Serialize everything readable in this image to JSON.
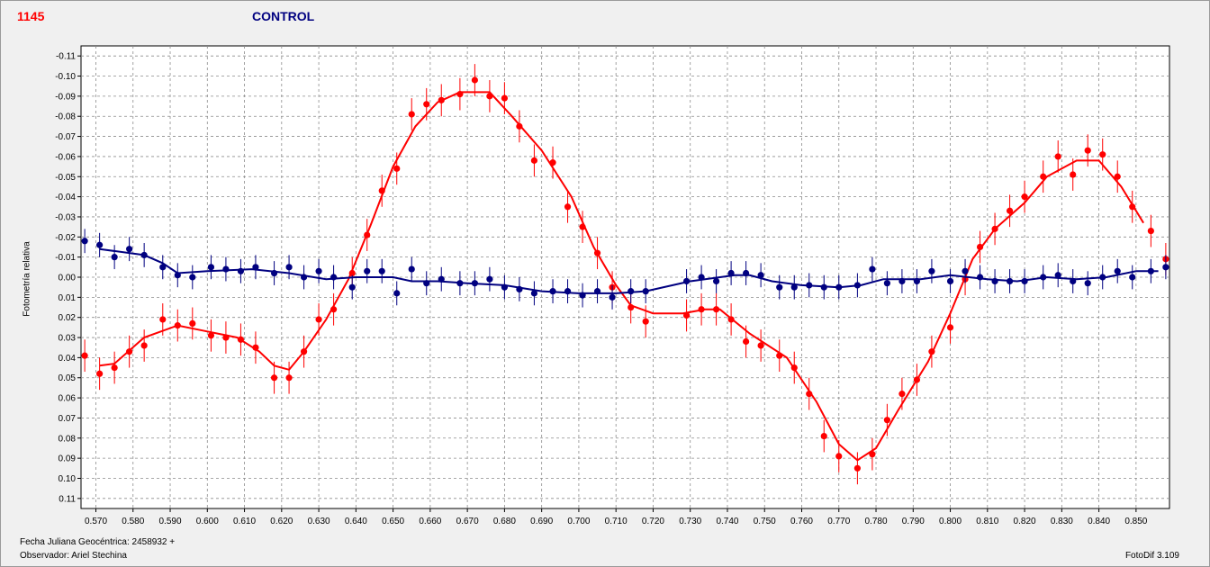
{
  "header": {
    "star_label": "1145",
    "control_label": "CONTROL"
  },
  "footer": {
    "julian_date": "Fecha Juliana Geocéntrica: 2458932 +",
    "observer": "Observador: Ariel Stechina",
    "software": "FotoDif 3.109"
  },
  "chart_data": {
    "type": "scatter",
    "ylabel": "Fotometría relativa",
    "xlim": [
      0.566,
      0.859
    ],
    "ylim": [
      -0.115,
      0.115
    ],
    "y_inverted": true,
    "grid": true,
    "x_ticks": [
      "0.570",
      "0.580",
      "0.590",
      "0.600",
      "0.610",
      "0.620",
      "0.630",
      "0.640",
      "0.650",
      "0.660",
      "0.670",
      "0.680",
      "0.690",
      "0.700",
      "0.710",
      "0.720",
      "0.730",
      "0.740",
      "0.750",
      "0.760",
      "0.770",
      "0.780",
      "0.790",
      "0.800",
      "0.810",
      "0.820",
      "0.830",
      "0.840",
      "0.850"
    ],
    "y_ticks": [
      "-0.11",
      "-0.10",
      "-0.09",
      "-0.08",
      "-0.07",
      "-0.06",
      "-0.05",
      "-0.04",
      "-0.03",
      "-0.02",
      "-0.01",
      "0.00",
      "0.01",
      "0.02",
      "0.03",
      "0.04",
      "0.05",
      "0.06",
      "0.07",
      "0.08",
      "0.09",
      "0.10",
      "0.11"
    ],
    "colors": {
      "variable": "#ff0000",
      "control": "#000080",
      "grid": "#8c8c8c"
    },
    "series": [
      {
        "color": "#ff0000",
        "err": 0.008,
        "points": [
          [
            0.567,
            0.039
          ],
          [
            0.571,
            0.048
          ],
          [
            0.575,
            0.045
          ],
          [
            0.579,
            0.037
          ],
          [
            0.583,
            0.034
          ],
          [
            0.588,
            0.021
          ],
          [
            0.592,
            0.024
          ],
          [
            0.596,
            0.023
          ],
          [
            0.601,
            0.029
          ],
          [
            0.605,
            0.03
          ],
          [
            0.609,
            0.031
          ],
          [
            0.613,
            0.035
          ],
          [
            0.618,
            0.05
          ],
          [
            0.622,
            0.05
          ],
          [
            0.626,
            0.037
          ],
          [
            0.63,
            0.021
          ],
          [
            0.634,
            0.016
          ],
          [
            0.639,
            -0.002
          ],
          [
            0.643,
            -0.021
          ],
          [
            0.647,
            -0.043
          ],
          [
            0.651,
            -0.054
          ],
          [
            0.655,
            -0.081
          ],
          [
            0.659,
            -0.086
          ],
          [
            0.663,
            -0.088
          ],
          [
            0.668,
            -0.091
          ],
          [
            0.672,
            -0.098
          ],
          [
            0.676,
            -0.09
          ],
          [
            0.68,
            -0.089
          ],
          [
            0.684,
            -0.075
          ],
          [
            0.688,
            -0.058
          ],
          [
            0.693,
            -0.057
          ],
          [
            0.697,
            -0.035
          ],
          [
            0.701,
            -0.025
          ],
          [
            0.705,
            -0.012
          ],
          [
            0.709,
            0.005
          ],
          [
            0.714,
            0.015
          ],
          [
            0.718,
            0.022
          ],
          [
            0.729,
            0.019
          ],
          [
            0.733,
            0.016
          ],
          [
            0.737,
            0.016
          ],
          [
            0.741,
            0.021
          ],
          [
            0.745,
            0.032
          ],
          [
            0.749,
            0.034
          ],
          [
            0.754,
            0.039
          ],
          [
            0.758,
            0.045
          ],
          [
            0.762,
            0.058
          ],
          [
            0.766,
            0.079
          ],
          [
            0.77,
            0.089
          ],
          [
            0.775,
            0.095
          ],
          [
            0.779,
            0.088
          ],
          [
            0.783,
            0.071
          ],
          [
            0.787,
            0.058
          ],
          [
            0.791,
            0.051
          ],
          [
            0.795,
            0.037
          ],
          [
            0.8,
            0.025
          ],
          [
            0.804,
            0.001
          ],
          [
            0.808,
            -0.015
          ],
          [
            0.812,
            -0.024
          ],
          [
            0.816,
            -0.033
          ],
          [
            0.82,
            -0.04
          ],
          [
            0.825,
            -0.05
          ],
          [
            0.829,
            -0.06
          ],
          [
            0.833,
            -0.051
          ],
          [
            0.837,
            -0.063
          ],
          [
            0.841,
            -0.061
          ],
          [
            0.845,
            -0.05
          ],
          [
            0.849,
            -0.035
          ],
          [
            0.854,
            -0.023
          ],
          [
            0.858,
            -0.009
          ]
        ],
        "fit": [
          [
            0.571,
            0.044
          ],
          [
            0.575,
            0.043
          ],
          [
            0.583,
            0.03
          ],
          [
            0.592,
            0.024
          ],
          [
            0.6,
            0.027
          ],
          [
            0.608,
            0.03
          ],
          [
            0.614,
            0.037
          ],
          [
            0.618,
            0.044
          ],
          [
            0.622,
            0.046
          ],
          [
            0.626,
            0.037
          ],
          [
            0.632,
            0.021
          ],
          [
            0.638,
            0.001
          ],
          [
            0.644,
            -0.026
          ],
          [
            0.65,
            -0.055
          ],
          [
            0.656,
            -0.075
          ],
          [
            0.662,
            -0.087
          ],
          [
            0.668,
            -0.092
          ],
          [
            0.676,
            -0.092
          ],
          [
            0.682,
            -0.08
          ],
          [
            0.69,
            -0.063
          ],
          [
            0.698,
            -0.04
          ],
          [
            0.704,
            -0.015
          ],
          [
            0.71,
            0.004
          ],
          [
            0.714,
            0.014
          ],
          [
            0.72,
            0.018
          ],
          [
            0.728,
            0.018
          ],
          [
            0.734,
            0.016
          ],
          [
            0.738,
            0.016
          ],
          [
            0.746,
            0.028
          ],
          [
            0.756,
            0.04
          ],
          [
            0.764,
            0.062
          ],
          [
            0.77,
            0.083
          ],
          [
            0.775,
            0.091
          ],
          [
            0.78,
            0.085
          ],
          [
            0.786,
            0.066
          ],
          [
            0.794,
            0.042
          ],
          [
            0.8,
            0.018
          ],
          [
            0.806,
            -0.009
          ],
          [
            0.812,
            -0.024
          ],
          [
            0.82,
            -0.037
          ],
          [
            0.826,
            -0.05
          ],
          [
            0.834,
            -0.058
          ],
          [
            0.84,
            -0.058
          ],
          [
            0.846,
            -0.045
          ],
          [
            0.852,
            -0.027
          ]
        ]
      },
      {
        "color": "#000080",
        "err": 0.006,
        "points": [
          [
            0.567,
            -0.018
          ],
          [
            0.571,
            -0.016
          ],
          [
            0.575,
            -0.01
          ],
          [
            0.579,
            -0.014
          ],
          [
            0.583,
            -0.011
          ],
          [
            0.588,
            -0.005
          ],
          [
            0.592,
            -0.001
          ],
          [
            0.596,
            0.0
          ],
          [
            0.601,
            -0.005
          ],
          [
            0.605,
            -0.004
          ],
          [
            0.609,
            -0.003
          ],
          [
            0.613,
            -0.005
          ],
          [
            0.618,
            -0.002
          ],
          [
            0.622,
            -0.005
          ],
          [
            0.626,
            0.0
          ],
          [
            0.63,
            -0.003
          ],
          [
            0.634,
            0.0
          ],
          [
            0.639,
            0.005
          ],
          [
            0.643,
            -0.003
          ],
          [
            0.647,
            -0.003
          ],
          [
            0.651,
            0.008
          ],
          [
            0.655,
            -0.004
          ],
          [
            0.659,
            0.003
          ],
          [
            0.663,
            0.001
          ],
          [
            0.668,
            0.003
          ],
          [
            0.672,
            0.003
          ],
          [
            0.676,
            0.001
          ],
          [
            0.68,
            0.005
          ],
          [
            0.684,
            0.006
          ],
          [
            0.688,
            0.008
          ],
          [
            0.693,
            0.007
          ],
          [
            0.697,
            0.007
          ],
          [
            0.701,
            0.009
          ],
          [
            0.705,
            0.007
          ],
          [
            0.709,
            0.01
          ],
          [
            0.714,
            0.007
          ],
          [
            0.718,
            0.007
          ],
          [
            0.729,
            0.002
          ],
          [
            0.733,
            0.0
          ],
          [
            0.737,
            0.002
          ],
          [
            0.741,
            -0.002
          ],
          [
            0.745,
            -0.002
          ],
          [
            0.749,
            -0.001
          ],
          [
            0.754,
            0.005
          ],
          [
            0.758,
            0.005
          ],
          [
            0.762,
            0.004
          ],
          [
            0.766,
            0.005
          ],
          [
            0.77,
            0.005
          ],
          [
            0.775,
            0.004
          ],
          [
            0.779,
            -0.004
          ],
          [
            0.783,
            0.003
          ],
          [
            0.787,
            0.002
          ],
          [
            0.791,
            0.002
          ],
          [
            0.795,
            -0.003
          ],
          [
            0.8,
            0.002
          ],
          [
            0.804,
            -0.003
          ],
          [
            0.808,
            0.0
          ],
          [
            0.812,
            0.002
          ],
          [
            0.816,
            0.002
          ],
          [
            0.82,
            0.002
          ],
          [
            0.825,
            0.0
          ],
          [
            0.829,
            -0.001
          ],
          [
            0.833,
            0.002
          ],
          [
            0.837,
            0.003
          ],
          [
            0.841,
            0.0
          ],
          [
            0.845,
            -0.003
          ],
          [
            0.849,
            0.0
          ],
          [
            0.854,
            -0.003
          ],
          [
            0.858,
            -0.005
          ]
        ],
        "fit": [
          [
            0.571,
            -0.014
          ],
          [
            0.583,
            -0.011
          ],
          [
            0.588,
            -0.007
          ],
          [
            0.592,
            -0.002
          ],
          [
            0.6,
            -0.003
          ],
          [
            0.612,
            -0.004
          ],
          [
            0.622,
            -0.002
          ],
          [
            0.632,
            0.001
          ],
          [
            0.64,
            0.0
          ],
          [
            0.65,
            0.0
          ],
          [
            0.655,
            0.002
          ],
          [
            0.662,
            0.002
          ],
          [
            0.67,
            0.003
          ],
          [
            0.68,
            0.004
          ],
          [
            0.69,
            0.007
          ],
          [
            0.7,
            0.008
          ],
          [
            0.71,
            0.008
          ],
          [
            0.718,
            0.007
          ],
          [
            0.73,
            0.002
          ],
          [
            0.742,
            -0.001
          ],
          [
            0.746,
            -0.001
          ],
          [
            0.752,
            0.002
          ],
          [
            0.76,
            0.004
          ],
          [
            0.77,
            0.005
          ],
          [
            0.776,
            0.004
          ],
          [
            0.782,
            0.001
          ],
          [
            0.792,
            0.001
          ],
          [
            0.8,
            -0.001
          ],
          [
            0.81,
            0.001
          ],
          [
            0.818,
            0.002
          ],
          [
            0.826,
            0.0
          ],
          [
            0.834,
            0.001
          ],
          [
            0.842,
            0.0
          ],
          [
            0.85,
            -0.003
          ],
          [
            0.856,
            -0.003
          ]
        ]
      }
    ]
  }
}
